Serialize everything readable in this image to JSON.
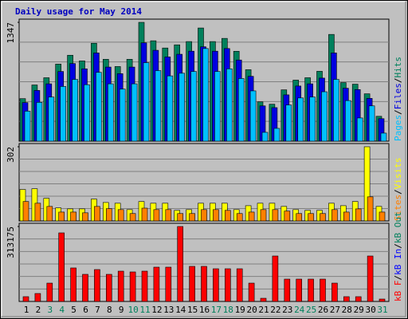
{
  "title": "Daily usage for May 2014",
  "legend_separator": "/",
  "chart_data": [
    {
      "type": "bar",
      "ylim": [
        0,
        1347
      ],
      "yticks": [
        1347
      ],
      "series": [
        {
          "name": "Hits",
          "color": "#00805c",
          "values": [
            482,
            637,
            719,
            874,
            974,
            910,
            1110,
            928,
            846,
            928,
            1347,
            1138,
            1056,
            1092,
            1129,
            1283,
            1129,
            1165,
            1019,
            810,
            446,
            419,
            582,
            692,
            719,
            792,
            1210,
            664,
            646,
            537,
            282
          ]
        },
        {
          "name": "Files",
          "color": "#0000e0",
          "values": [
            437,
            575,
            650,
            790,
            880,
            820,
            1000,
            840,
            765,
            840,
            1115,
            1030,
            955,
            985,
            1020,
            1070,
            1020,
            1050,
            920,
            735,
            400,
            380,
            525,
            625,
            650,
            715,
            1000,
            600,
            585,
            485,
            255
          ]
        },
        {
          "name": "Pages",
          "color": "#00c0ff",
          "values": [
            340,
            440,
            500,
            620,
            700,
            640,
            780,
            650,
            590,
            650,
            890,
            800,
            740,
            770,
            790,
            1050,
            790,
            820,
            710,
            570,
            100,
            145,
            410,
            490,
            500,
            560,
            700,
            460,
            263,
            400,
            91
          ]
        }
      ]
    },
    {
      "type": "bar",
      "ylim": [
        0,
        302
      ],
      "yticks": [
        302
      ],
      "series": [
        {
          "name": "Visits",
          "color": "#ffff00",
          "values": [
            128,
            131,
            92,
            53,
            49,
            49,
            89,
            75,
            72,
            46,
            79,
            72,
            72,
            43,
            46,
            72,
            72,
            72,
            46,
            62,
            72,
            72,
            59,
            46,
            43,
            43,
            72,
            62,
            79,
            302,
            59
          ]
        },
        {
          "name": "Sites",
          "color": "#ff8000",
          "values": [
            79,
            72,
            59,
            36,
            36,
            33,
            59,
            50,
            46,
            30,
            52,
            46,
            46,
            30,
            30,
            46,
            46,
            43,
            30,
            36,
            46,
            46,
            40,
            30,
            30,
            30,
            46,
            36,
            49,
            98,
            36
          ]
        }
      ]
    },
    {
      "type": "bar",
      "ylim": [
        0,
        313175
      ],
      "yticks": [
        313175
      ],
      "categories": [
        "1",
        "2",
        "3",
        "4",
        "5",
        "6",
        "7",
        "8",
        "9",
        "10",
        "11",
        "12",
        "13",
        "14",
        "15",
        "16",
        "17",
        "18",
        "19",
        "20",
        "21",
        "22",
        "23",
        "24",
        "25",
        "26",
        "27",
        "28",
        "29",
        "30",
        "31"
      ],
      "category_colors": [
        "#000000",
        "#000000",
        "#00805c",
        "#00805c",
        "#000000",
        "#000000",
        "#000000",
        "#000000",
        "#000000",
        "#00805c",
        "#00805c",
        "#000000",
        "#000000",
        "#000000",
        "#000000",
        "#000000",
        "#00805c",
        "#00805c",
        "#000000",
        "#000000",
        "#000000",
        "#000000",
        "#000000",
        "#00805c",
        "#00805c",
        "#000000",
        "#000000",
        "#000000",
        "#000000",
        "#000000",
        "#00805c"
      ],
      "series": [
        {
          "name": "kB F",
          "color": "#ff0000",
          "values": [
            20000,
            33300,
            76600,
            286500,
            140000,
            113300,
            133300,
            113300,
            126600,
            123300,
            126600,
            143300,
            143300,
            313175,
            146600,
            146600,
            136600,
            136600,
            136600,
            76600,
            13300,
            189900,
            93300,
            93300,
            93300,
            93300,
            76600,
            20000,
            20000,
            189900,
            10000
          ]
        }
      ],
      "legend_extra": [
        {
          "name": "kB In",
          "color": "#0000ff"
        },
        {
          "name": "kB Out",
          "color": "#00805c"
        }
      ]
    }
  ]
}
